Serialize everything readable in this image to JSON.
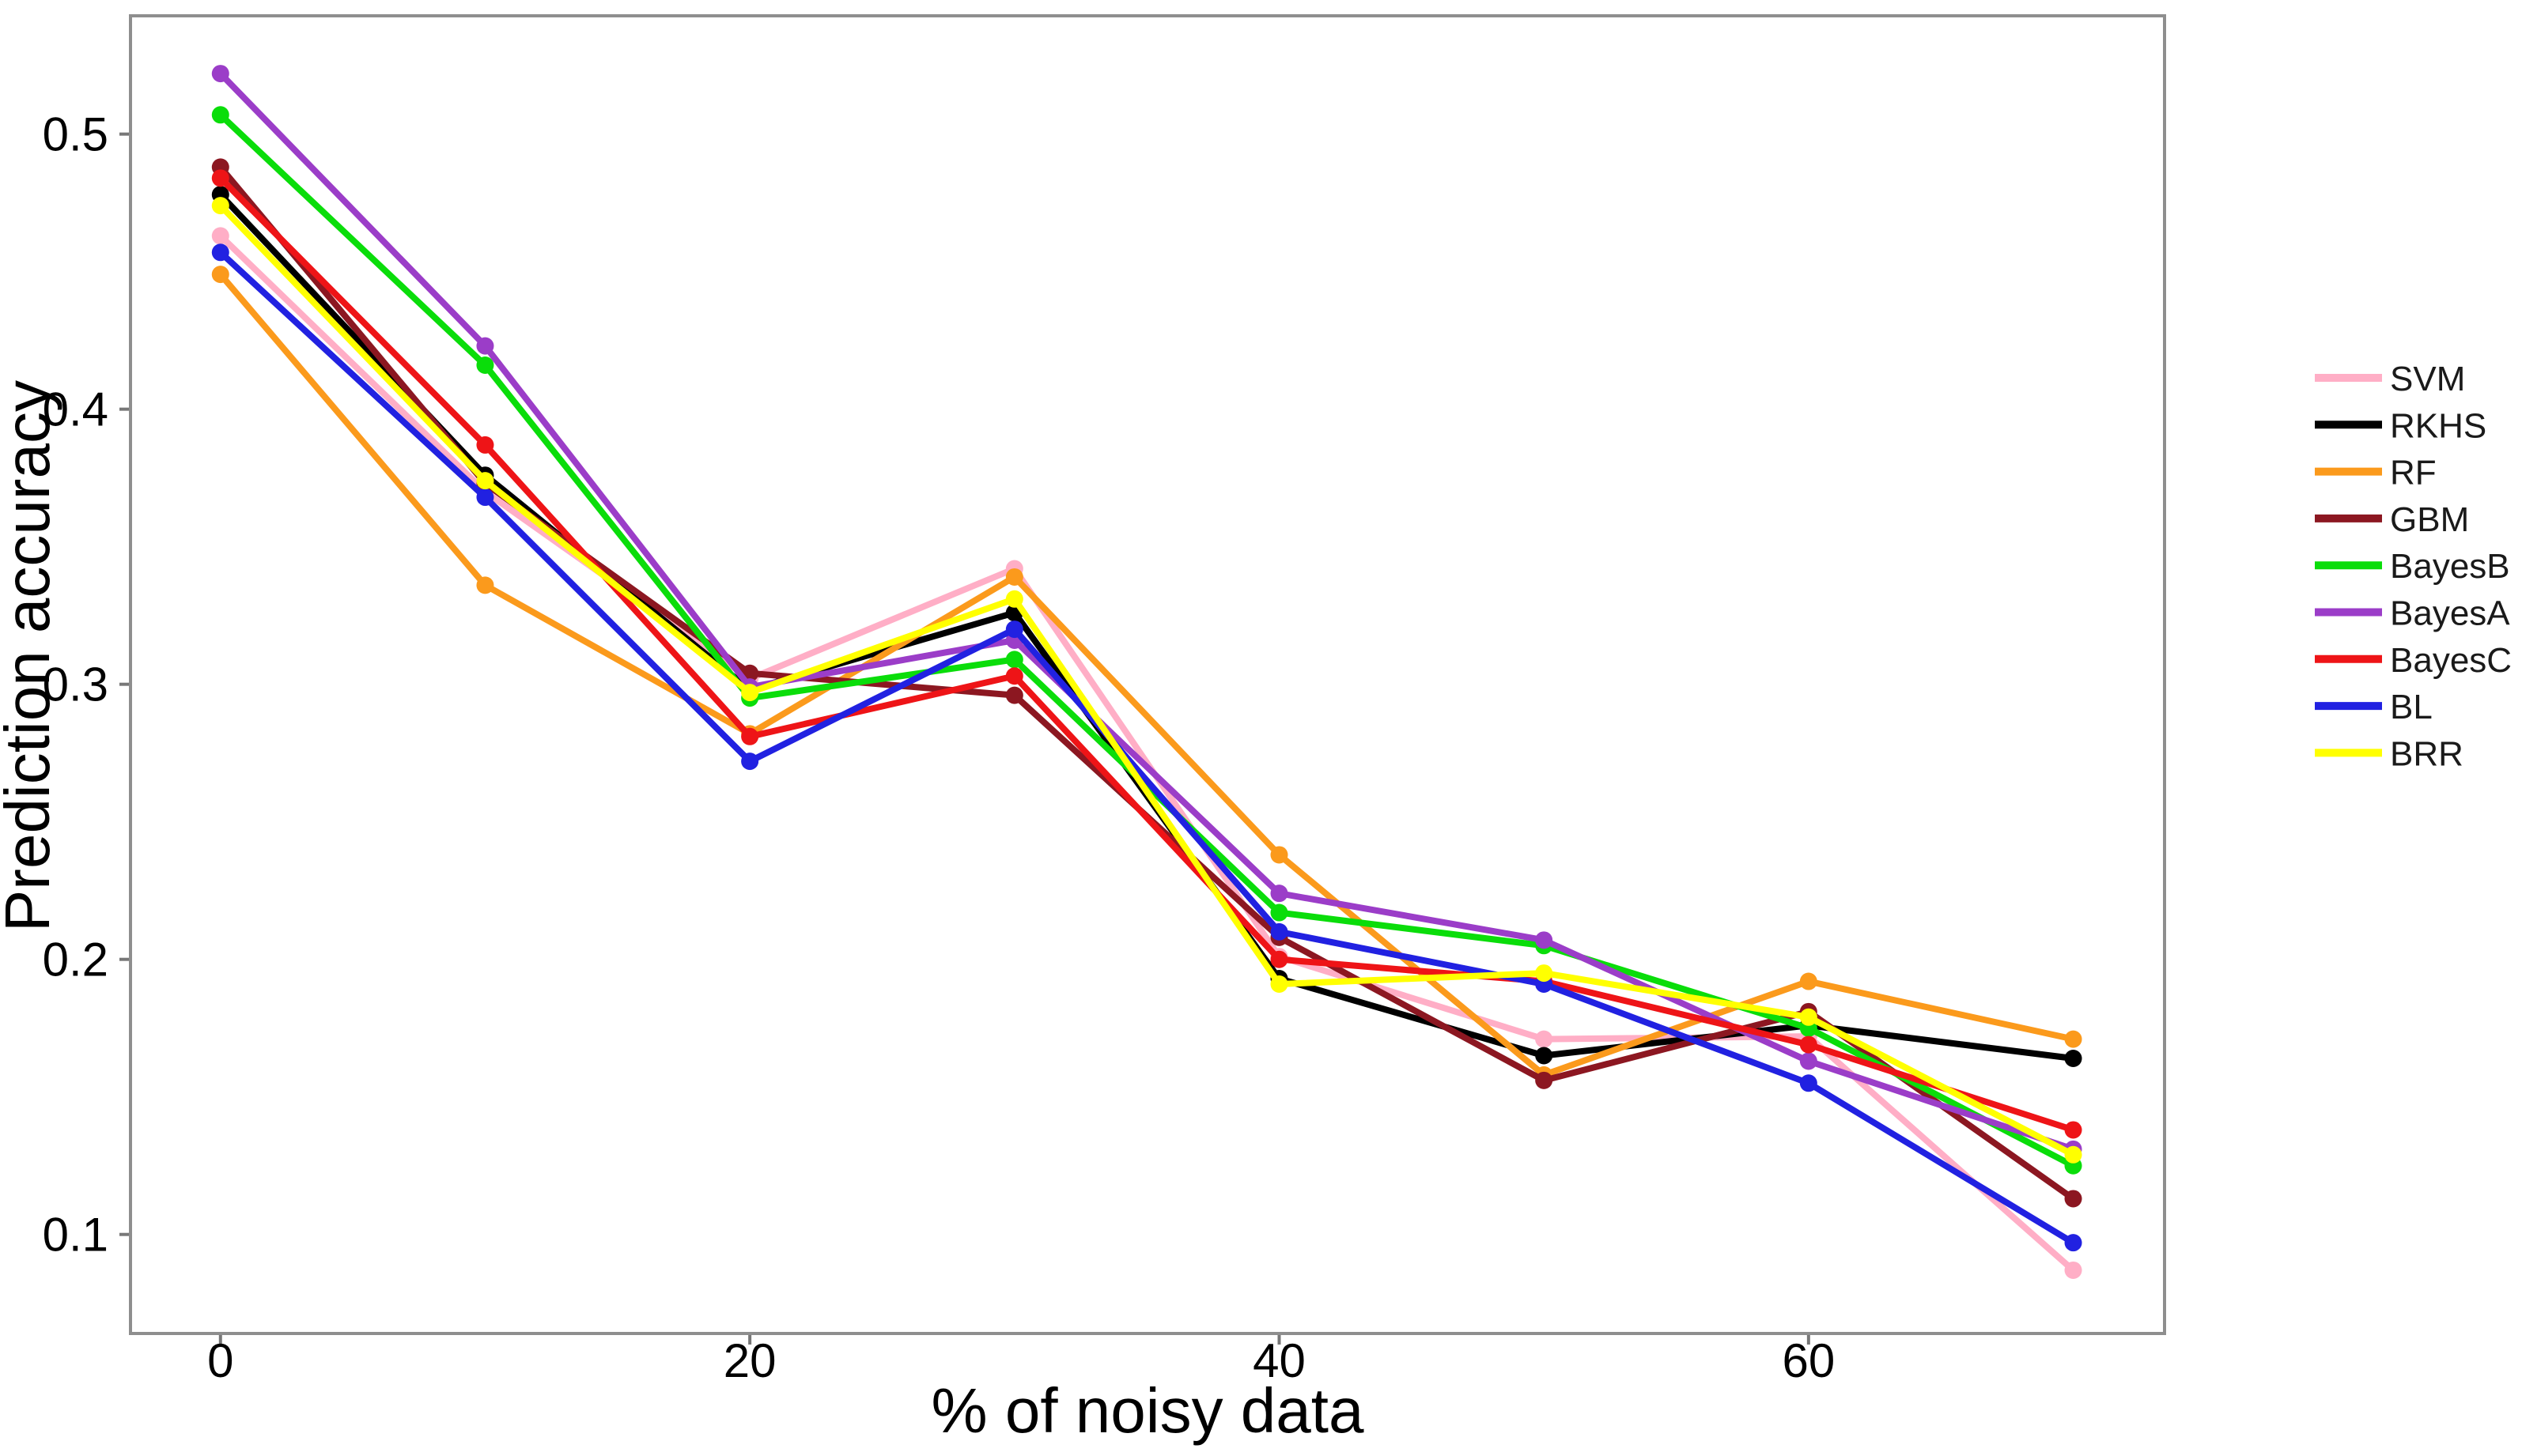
{
  "chart_data": {
    "type": "line",
    "title": "",
    "xlabel": "% of noisy data",
    "ylabel": "Prediction accuracy",
    "x": [
      0,
      10,
      20,
      30,
      40,
      50,
      60,
      70
    ],
    "x_tick_labels": [
      "0",
      "20",
      "40",
      "60"
    ],
    "x_tick_values": [
      0,
      20,
      40,
      60
    ],
    "y_tick_labels": [
      "0.1",
      "0.2",
      "0.3",
      "0.4",
      "0.5"
    ],
    "y_tick_values": [
      0.1,
      0.2,
      0.3,
      0.4,
      0.5
    ],
    "xlim": [
      -3.4,
      73.45
    ],
    "ylim": [
      0.064,
      0.543
    ],
    "grid": false,
    "legend_position": "right",
    "series": [
      {
        "name": "SVM",
        "color": "#FFAEC6",
        "values": [
          0.463,
          0.37,
          0.302,
          0.342,
          0.201,
          0.171,
          0.172,
          0.087
        ]
      },
      {
        "name": "RKHS",
        "color": "#000000",
        "values": [
          0.478,
          0.376,
          0.298,
          0.326,
          0.193,
          0.165,
          0.176,
          0.164
        ]
      },
      {
        "name": "RF",
        "color": "#FB9A1C",
        "values": [
          0.449,
          0.336,
          0.282,
          0.339,
          0.238,
          0.158,
          0.192,
          0.171
        ]
      },
      {
        "name": "GBM",
        "color": "#8C1721",
        "values": [
          0.488,
          0.373,
          0.304,
          0.296,
          0.208,
          0.156,
          0.181,
          0.113
        ]
      },
      {
        "name": "BayesB",
        "color": "#0ADD0A",
        "values": [
          0.507,
          0.416,
          0.295,
          0.309,
          0.217,
          0.205,
          0.175,
          0.125
        ]
      },
      {
        "name": "BayesA",
        "color": "#9B3DC8",
        "values": [
          0.522,
          0.423,
          0.299,
          0.316,
          0.224,
          0.207,
          0.163,
          0.131
        ]
      },
      {
        "name": "BayesC",
        "color": "#EE1417",
        "values": [
          0.484,
          0.387,
          0.281,
          0.303,
          0.2,
          0.192,
          0.169,
          0.138
        ]
      },
      {
        "name": "BL",
        "color": "#2121E1",
        "values": [
          0.457,
          0.368,
          0.272,
          0.32,
          0.21,
          0.191,
          0.155,
          0.097
        ]
      },
      {
        "name": "BRR",
        "color": "#FFFF00",
        "values": [
          0.474,
          0.374,
          0.297,
          0.331,
          0.191,
          0.195,
          0.179,
          0.129
        ]
      }
    ]
  },
  "style": {
    "panel_border_color": "#8E8E8E",
    "tick_color": "#777777",
    "text_color": "#000000",
    "legend_text_color": "#1a1a1a"
  }
}
